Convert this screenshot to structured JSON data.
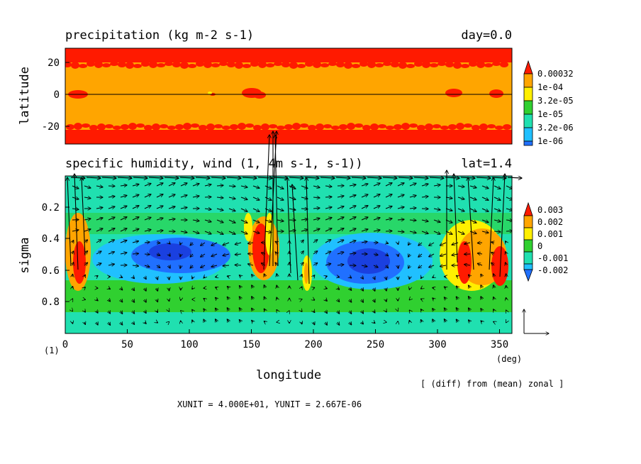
{
  "colors": {
    "red": "#ff1a00",
    "orange": "#ffa500",
    "yellow": "#ffef00",
    "green": "#30d030",
    "aqua": "#20e0b0",
    "cyan": "#20c0ff",
    "blue": "#2070ff",
    "deepblue": "#1a40e0"
  },
  "chart_data": [
    {
      "type": "heatmap",
      "title": "precipitation (kg m-2 s-1)",
      "right_label": "day=0.0",
      "ylabel": "latitude",
      "xlim": [
        0,
        360
      ],
      "ylim": [
        -30,
        30
      ],
      "yticks": [
        "20",
        "0",
        "-20"
      ],
      "yticks_values": [
        20,
        0,
        -20
      ],
      "legend": {
        "position": "right",
        "labels": [
          "0.00032",
          "1e-04",
          "3.2e-05",
          "1e-05",
          "3.2e-06",
          "1e-06"
        ],
        "colors": [
          "#ff1a00",
          "#ffa500",
          "#ffef00",
          "#30d030",
          "#20e0b0",
          "#20c0ff",
          "#2070ff"
        ]
      }
    },
    {
      "type": "heatmap",
      "title": "specific humidity, wind (1, 4m s-1, s-1))",
      "right_label": "lat=1.4",
      "ylabel": "sigma",
      "xlabel": "longitude",
      "x_unit": "(deg)",
      "xlim": [
        0,
        360
      ],
      "ylim": [
        1.0,
        0.0
      ],
      "xticks": [
        "0",
        "50",
        "100",
        "150",
        "200",
        "250",
        "300",
        "350"
      ],
      "xticks_values": [
        0,
        50,
        100,
        150,
        200,
        250,
        300,
        350
      ],
      "yticks": [
        "0.2",
        "0.4",
        "0.6",
        "0.8"
      ],
      "yticks_values": [
        0.2,
        0.4,
        0.6,
        0.8
      ],
      "legend": {
        "position": "right",
        "labels": [
          "0.003",
          "0.002",
          "0.001",
          "0",
          "-0.001",
          "-0.002"
        ],
        "colors": [
          "#ff1a00",
          "#ffa500",
          "#ffef00",
          "#30d030",
          "#20e0b0",
          "#20c0ff",
          "#2070ff"
        ]
      }
    }
  ],
  "footer": {
    "frame_label": "(1)",
    "diff_note": "[ (diff) from (mean) zonal ]",
    "units_note": "XUNIT = 4.000E+01, YUNIT = 2.667E-06"
  }
}
